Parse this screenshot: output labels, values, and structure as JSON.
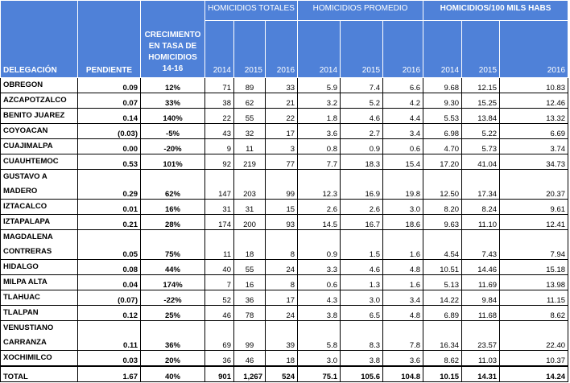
{
  "header": {
    "delegacion": "DELEGACIÓN",
    "pendiente": "PENDIENTE",
    "crecimiento": "CRECIMIENTO EN TASA DE HOMICIDIOS 14-16",
    "group_totales": "HOMICIDIOS TOTALES",
    "group_promedio": "HOMICIDIOS PROMEDIO",
    "group_tasa": "HOMICIDIOS/100 MILS HABS",
    "years": [
      "2014",
      "2015",
      "2016"
    ]
  },
  "rows": [
    {
      "name": "OBREGON",
      "pendiente": "0.09",
      "crec": "12%",
      "t": [
        "71",
        "89",
        "33"
      ],
      "p": [
        "5.9",
        "7.4",
        "6.6"
      ],
      "h": [
        "9.68",
        "12.15",
        "10.83"
      ]
    },
    {
      "name": "AZCAPOTZALCO",
      "pendiente": "0.07",
      "crec": "33%",
      "t": [
        "38",
        "62",
        "21"
      ],
      "p": [
        "3.2",
        "5.2",
        "4.2"
      ],
      "h": [
        "9.30",
        "15.25",
        "12.46"
      ]
    },
    {
      "name": "BENITO JUAREZ",
      "pendiente": "0.14",
      "crec": "140%",
      "t": [
        "22",
        "55",
        "22"
      ],
      "p": [
        "1.8",
        "4.6",
        "4.4"
      ],
      "h": [
        "5.53",
        "13.84",
        "13.32"
      ]
    },
    {
      "name": "COYOACAN",
      "pendiente": "(0.03)",
      "crec": "-5%",
      "t": [
        "43",
        "32",
        "17"
      ],
      "p": [
        "3.6",
        "2.7",
        "3.4"
      ],
      "h": [
        "6.98",
        "5.22",
        "6.69"
      ]
    },
    {
      "name": "CUAJIMALPA",
      "pendiente": "0.00",
      "crec": "-20%",
      "t": [
        "9",
        "11",
        "3"
      ],
      "p": [
        "0.8",
        "0.9",
        "0.6"
      ],
      "h": [
        "4.70",
        "5.73",
        "3.74"
      ]
    },
    {
      "name": "CUAUHTEMOC",
      "pendiente": "0.53",
      "crec": "101%",
      "t": [
        "92",
        "219",
        "77"
      ],
      "p": [
        "7.7",
        "18.3",
        "15.4"
      ],
      "h": [
        "17.20",
        "41.04",
        "34.73"
      ]
    },
    {
      "name": "GUSTAVO A MADERO",
      "pendiente": "0.29",
      "crec": "62%",
      "t": [
        "147",
        "203",
        "99"
      ],
      "p": [
        "12.3",
        "16.9",
        "19.8"
      ],
      "h": [
        "12.50",
        "17.34",
        "20.37"
      ],
      "tall": true
    },
    {
      "name": "IZTACALCO",
      "pendiente": "0.01",
      "crec": "16%",
      "t": [
        "31",
        "31",
        "15"
      ],
      "p": [
        "2.6",
        "2.6",
        "3.0"
      ],
      "h": [
        "8.20",
        "8.24",
        "9.61"
      ]
    },
    {
      "name": "IZTAPALAPA",
      "pendiente": "0.21",
      "crec": "28%",
      "t": [
        "174",
        "200",
        "93"
      ],
      "p": [
        "14.5",
        "16.7",
        "18.6"
      ],
      "h": [
        "9.63",
        "11.10",
        "12.41"
      ]
    },
    {
      "name": "MAGDALENA CONTRERAS",
      "pendiente": "0.05",
      "crec": "75%",
      "t": [
        "11",
        "18",
        "8"
      ],
      "p": [
        "0.9",
        "1.5",
        "1.6"
      ],
      "h": [
        "4.54",
        "7.43",
        "7.94"
      ],
      "tall": true
    },
    {
      "name": "HIDALGO",
      "pendiente": "0.08",
      "crec": "44%",
      "t": [
        "40",
        "55",
        "24"
      ],
      "p": [
        "3.3",
        "4.6",
        "4.8"
      ],
      "h": [
        "10.51",
        "14.46",
        "15.18"
      ]
    },
    {
      "name": "MILPA ALTA",
      "pendiente": "0.04",
      "crec": "174%",
      "t": [
        "7",
        "16",
        "8"
      ],
      "p": [
        "0.6",
        "1.3",
        "1.6"
      ],
      "h": [
        "5.13",
        "11.69",
        "13.98"
      ]
    },
    {
      "name": "TLAHUAC",
      "pendiente": "(0.07)",
      "crec": "-22%",
      "t": [
        "52",
        "36",
        "17"
      ],
      "p": [
        "4.3",
        "3.0",
        "3.4"
      ],
      "h": [
        "14.22",
        "9.84",
        "11.15"
      ]
    },
    {
      "name": "TLALPAN",
      "pendiente": "0.12",
      "crec": "25%",
      "t": [
        "46",
        "78",
        "24"
      ],
      "p": [
        "3.8",
        "6.5",
        "4.8"
      ],
      "h": [
        "6.89",
        "11.68",
        "8.62"
      ]
    },
    {
      "name": "VENUSTIANO CARRANZA",
      "pendiente": "0.11",
      "crec": "36%",
      "t": [
        "69",
        "99",
        "39"
      ],
      "p": [
        "5.8",
        "8.3",
        "7.8"
      ],
      "h": [
        "16.34",
        "23.57",
        "22.40"
      ],
      "tall": true
    },
    {
      "name": "XOCHIMILCO",
      "pendiente": "0.03",
      "crec": "20%",
      "t": [
        "36",
        "46",
        "18"
      ],
      "p": [
        "3.0",
        "3.8",
        "3.6"
      ],
      "h": [
        "8.62",
        "11.03",
        "10.37"
      ]
    }
  ],
  "total": {
    "name": "TOTAL",
    "pendiente": "1.67",
    "crec": "40%",
    "t": [
      "901",
      "1,267",
      "524"
    ],
    "p": [
      "75.1",
      "105.6",
      "104.8"
    ],
    "h": [
      "10.15",
      "14.31",
      "14.24"
    ]
  }
}
